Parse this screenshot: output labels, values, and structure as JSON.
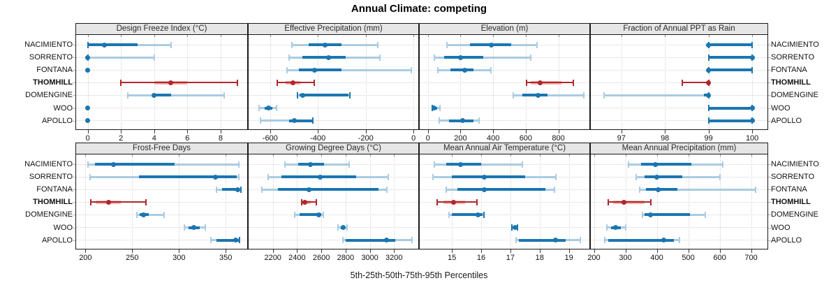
{
  "title": "Annual Climate: competing",
  "caption": "5th-25th-50th-75th-95th Percentiles",
  "sites": [
    "NACIMIENTO",
    "SORRENTO",
    "FONTANA",
    "THOMHILL",
    "DOMENGINE",
    "WOO",
    "APOLLO"
  ],
  "highlight_site": "THOMHILL",
  "colors": {
    "normal_dark": "#1a76b0",
    "normal_light": "#a9cce2",
    "highlight_dark": "#b0272b",
    "highlight_light": "#f0b3b0",
    "header_bg": "#e6e6e6",
    "grid": "#d3d3d3",
    "border": "#1a1a1a"
  },
  "chart_data": {
    "type": "dotplot-percentiles",
    "title": "Annual Climate: competing",
    "legend_note": "5th-25th-50th-75th-95th Percentiles",
    "percentile_labels": [
      "5th",
      "25th",
      "50th",
      "75th",
      "95th"
    ],
    "grid": "dotted",
    "panels": [
      {
        "title": "Design Freeze Index (°C)",
        "row": 0,
        "col": 0,
        "ticks": [
          0,
          2,
          4,
          6,
          8
        ],
        "domain": [
          -0.7,
          9.6
        ],
        "values": [
          [
            0,
            0,
            1,
            3,
            5
          ],
          [
            0,
            0,
            0,
            0,
            4
          ],
          [
            0,
            0,
            0,
            0,
            0
          ],
          [
            2,
            4,
            5,
            6,
            9
          ],
          [
            2.4,
            4,
            4,
            5,
            8.2
          ],
          [
            0,
            0,
            0,
            0,
            0
          ],
          [
            0,
            0,
            0,
            0,
            0
          ]
        ]
      },
      {
        "title": "Effective Precipitation (mm)",
        "row": 0,
        "col": 1,
        "ticks": [
          -600,
          -400,
          -200,
          0
        ],
        "domain": [
          -690,
          20
        ],
        "values": [
          [
            -510,
            -440,
            -370,
            -300,
            -150
          ],
          [
            -520,
            -465,
            -355,
            -285,
            -140
          ],
          [
            -530,
            -480,
            -415,
            -300,
            -10
          ],
          [
            -570,
            -535,
            -505,
            -475,
            -415
          ],
          [
            -485,
            -478,
            -463,
            -272,
            -266
          ],
          [
            -645,
            -622,
            -608,
            -592,
            -572
          ],
          [
            -640,
            -520,
            -498,
            -425,
            -420
          ]
        ]
      },
      {
        "title": "Elevation (m)",
        "row": 0,
        "col": 2,
        "ticks": [
          0,
          200,
          400,
          600,
          800
        ],
        "domain": [
          -50,
          990
        ],
        "values": [
          [
            115,
            260,
            390,
            510,
            670
          ],
          [
            40,
            100,
            200,
            340,
            630
          ],
          [
            60,
            140,
            225,
            280,
            385
          ],
          [
            605,
            630,
            690,
            820,
            890
          ],
          [
            525,
            580,
            675,
            735,
            955
          ],
          [
            25,
            30,
            38,
            55,
            75
          ],
          [
            70,
            130,
            215,
            280,
            315
          ]
        ]
      },
      {
        "title": "Fraction of Annual PPT as Rain",
        "row": 0,
        "col": 3,
        "ticks": [
          97,
          98,
          99,
          100
        ],
        "domain": [
          96.3,
          100.35
        ],
        "values": [
          [
            99,
            99,
            99,
            100,
            100
          ],
          [
            99,
            99,
            100,
            100,
            100
          ],
          [
            99,
            99,
            99,
            100,
            100
          ],
          [
            98.4,
            99,
            99,
            99,
            99
          ],
          [
            96.6,
            98.9,
            99,
            99,
            99
          ],
          [
            99,
            99,
            100,
            100,
            100
          ],
          [
            99,
            99,
            100,
            100,
            100
          ]
        ]
      },
      {
        "title": "Frost-Free Days",
        "row": 1,
        "col": 0,
        "ticks": [
          200,
          250,
          300,
          350
        ],
        "domain": [
          190,
          373
        ],
        "values": [
          [
            203,
            210,
            230,
            295,
            364
          ],
          [
            205,
            257,
            339,
            362,
            364
          ],
          [
            340,
            346,
            363,
            365,
            366
          ],
          [
            206,
            211,
            225,
            238,
            265
          ],
          [
            255,
            258,
            262,
            268,
            284
          ],
          [
            306,
            310,
            316,
            322,
            328
          ],
          [
            334,
            340,
            361,
            364,
            365
          ]
        ]
      },
      {
        "title": "Growing Degree Days (°C)",
        "row": 1,
        "col": 1,
        "ticks": [
          2200,
          2400,
          2600,
          2800,
          3000,
          3200
        ],
        "domain": [
          2000,
          3400
        ],
        "values": [
          [
            2300,
            2410,
            2510,
            2620,
            2830
          ],
          [
            2160,
            2270,
            2590,
            2885,
            3150
          ],
          [
            2110,
            2240,
            2500,
            3070,
            3140
          ],
          [
            2435,
            2445,
            2465,
            2515,
            2560
          ],
          [
            2380,
            2420,
            2580,
            2600,
            2615
          ],
          [
            2740,
            2760,
            2780,
            2795,
            2810
          ],
          [
            2780,
            2800,
            3140,
            3210,
            3350
          ]
        ]
      },
      {
        "title": "Mean Annual Air Temperature (°C)",
        "row": 1,
        "col": 2,
        "ticks": [
          15,
          16,
          17,
          18,
          19
        ],
        "domain": [
          13.9,
          19.7
        ],
        "values": [
          [
            14.4,
            14.8,
            15.3,
            16.0,
            17.4
          ],
          [
            14.35,
            15.0,
            16.1,
            17.5,
            18.55
          ],
          [
            14.8,
            15.2,
            16.1,
            18.2,
            18.5
          ],
          [
            14.5,
            14.7,
            15.05,
            15.45,
            15.85
          ],
          [
            14.9,
            15.0,
            15.9,
            16.05,
            16.1
          ],
          [
            17.05,
            17.1,
            17.15,
            17.2,
            17.25
          ],
          [
            17.2,
            17.3,
            18.55,
            18.9,
            19.4
          ]
        ]
      },
      {
        "title": "Mean Annual Precipitation (mm)",
        "row": 1,
        "col": 3,
        "ticks": [
          200,
          300,
          400,
          500,
          600,
          700
        ],
        "domain": [
          190,
          752
        ],
        "values": [
          [
            310,
            350,
            395,
            510,
            610
          ],
          [
            335,
            360,
            400,
            480,
            600
          ],
          [
            345,
            365,
            405,
            465,
            715
          ],
          [
            245,
            260,
            295,
            360,
            380
          ],
          [
            355,
            362,
            380,
            505,
            555
          ],
          [
            240,
            255,
            268,
            285,
            300
          ],
          [
            235,
            245,
            422,
            455,
            473
          ]
        ]
      }
    ]
  }
}
